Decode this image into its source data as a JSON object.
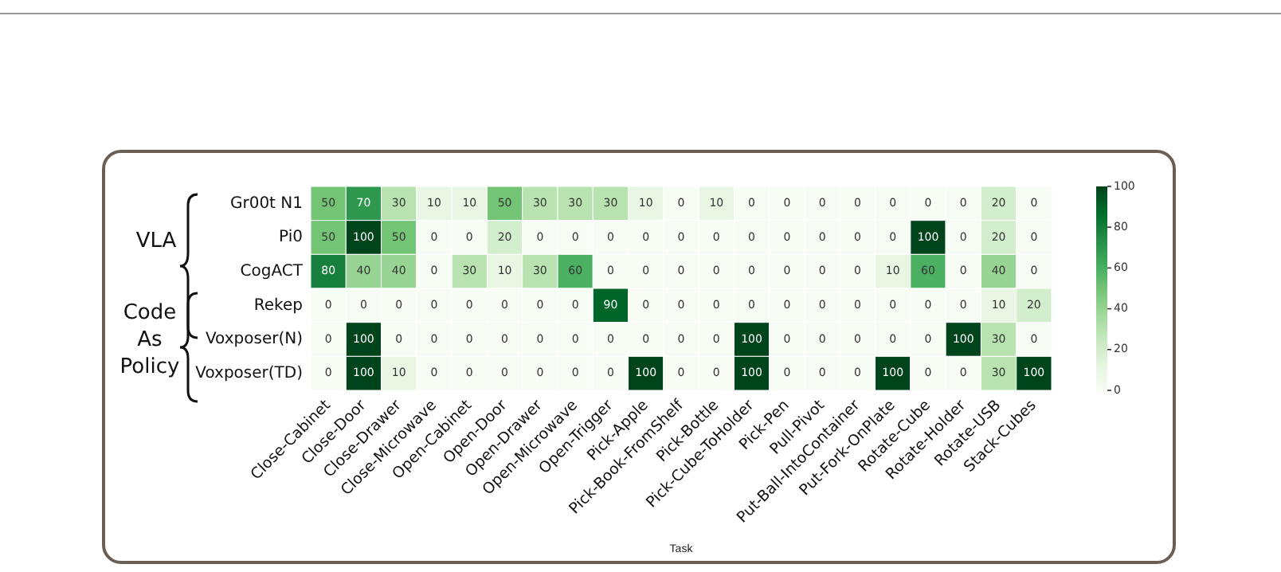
{
  "chart_data": {
    "type": "heatmap",
    "xlabel": "Task",
    "annotations": [
      "VLA",
      "Code As Policy"
    ],
    "categories": [
      "Close-Cabinet",
      "Close-Door",
      "Close-Drawer",
      "Close-Microwave",
      "Open-Cabinet",
      "Open-Door",
      "Open-Drawer",
      "Open-Microwave",
      "Open-Trigger",
      "Pick-Apple",
      "Pick-Book-FromShelf",
      "Pick-Bottle",
      "Pick-Cube-ToHolder",
      "Pick-Pen",
      "Pull-Pivot",
      "Put-Ball-IntoContainer",
      "Put-Fork-OnPlate",
      "Rotate-Cube",
      "Rotate-Holder",
      "Rotate-USB",
      "Stack-Cubes"
    ],
    "y_categories": [
      "Gr00t N1",
      "Pi0",
      "CogACT",
      "Rekep",
      "Voxposer(N)",
      "Voxposer(TD)"
    ],
    "cells": [
      [
        50,
        70,
        30,
        10,
        10,
        50,
        30,
        30,
        30,
        10,
        0,
        10,
        0,
        0,
        0,
        0,
        0,
        0,
        0,
        20,
        0
      ],
      [
        50,
        100,
        50,
        0,
        0,
        20,
        0,
        0,
        0,
        0,
        0,
        0,
        0,
        0,
        0,
        0,
        0,
        100,
        0,
        20,
        0
      ],
      [
        80,
        40,
        40,
        0,
        30,
        10,
        30,
        60,
        0,
        0,
        0,
        0,
        0,
        0,
        0,
        0,
        10,
        60,
        0,
        40,
        0
      ],
      [
        0,
        0,
        0,
        0,
        0,
        0,
        0,
        0,
        90,
        0,
        0,
        0,
        0,
        0,
        0,
        0,
        0,
        0,
        0,
        10,
        20
      ],
      [
        0,
        100,
        0,
        0,
        0,
        0,
        0,
        0,
        0,
        0,
        0,
        0,
        100,
        0,
        0,
        0,
        0,
        0,
        100,
        30,
        0
      ],
      [
        0,
        100,
        10,
        0,
        0,
        0,
        0,
        0,
        0,
        100,
        0,
        0,
        100,
        0,
        0,
        0,
        100,
        0,
        0,
        30,
        100
      ]
    ],
    "clim": [
      0,
      100
    ],
    "cticks": [
      0,
      20,
      40,
      60,
      80,
      100
    ],
    "data_labels": true
  }
}
